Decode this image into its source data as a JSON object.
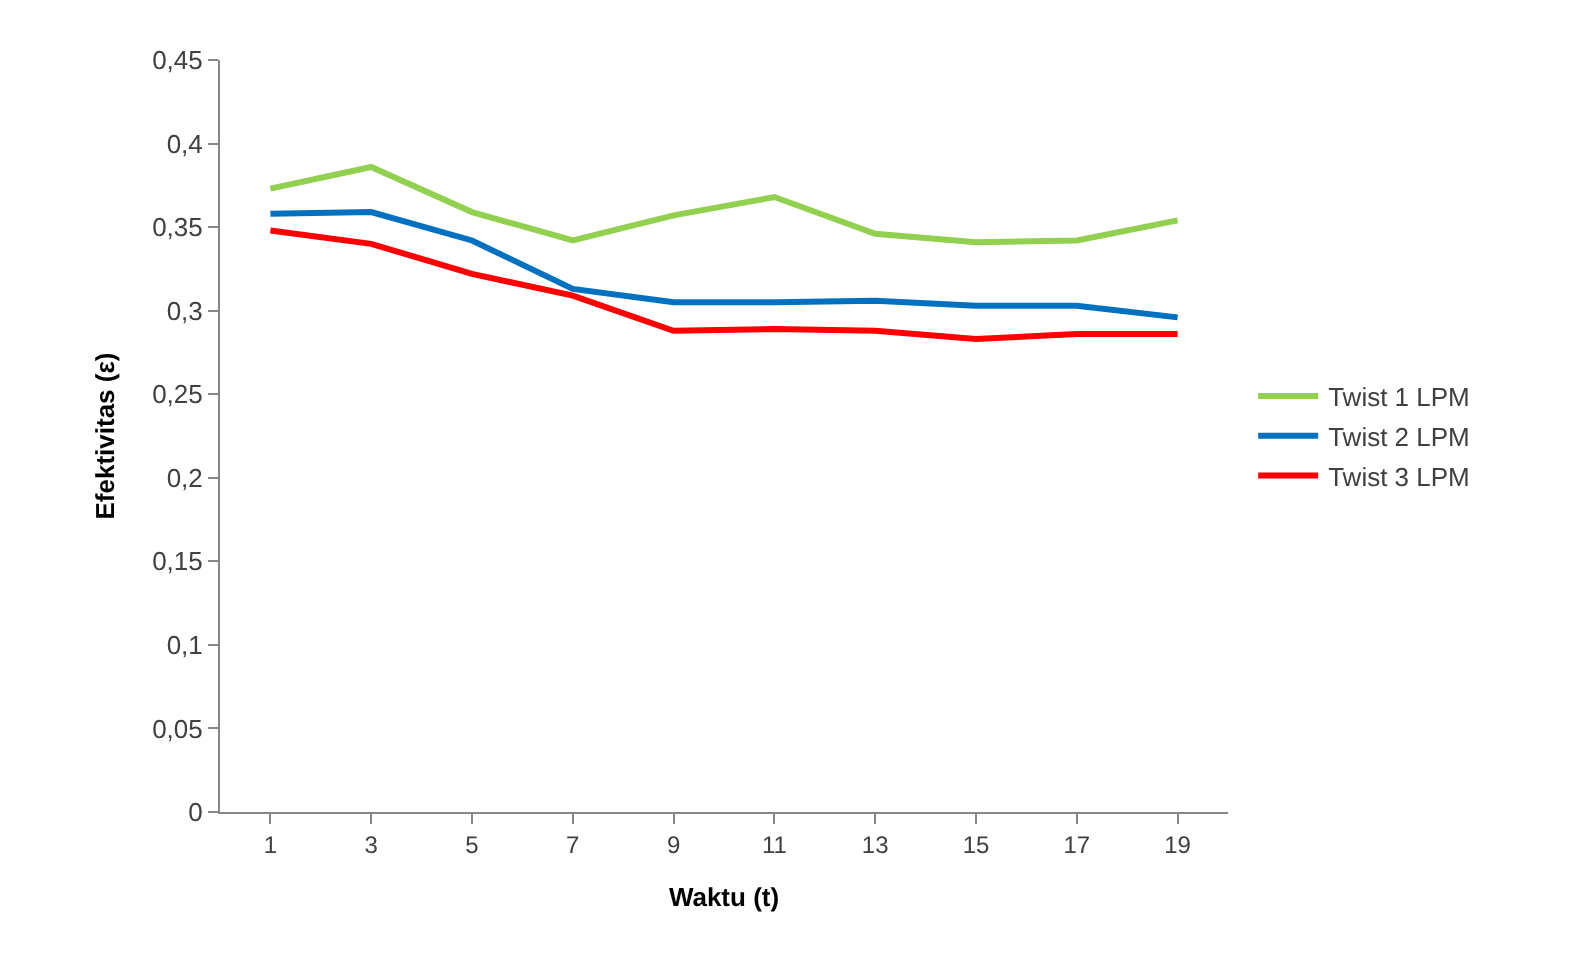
{
  "chart_data": {
    "type": "line",
    "xlabel": "Waktu (t)",
    "ylabel": "Efektivitas (ε)",
    "x": [
      1,
      3,
      5,
      7,
      9,
      11,
      13,
      15,
      17,
      19
    ],
    "xlim": [
      0,
      20
    ],
    "xticks": [
      1,
      3,
      5,
      7,
      9,
      11,
      13,
      15,
      17,
      19
    ],
    "series": [
      {
        "name": "Twist 1 LPM",
        "color": "#92d050",
        "values": [
          0.373,
          0.386,
          0.359,
          0.342,
          0.357,
          0.368,
          0.346,
          0.341,
          0.342,
          0.354
        ]
      },
      {
        "name": "Twist 2 LPM",
        "color": "#0070c0",
        "values": [
          0.358,
          0.359,
          0.342,
          0.313,
          0.305,
          0.305,
          0.306,
          0.303,
          0.303,
          0.296
        ]
      },
      {
        "name": "Twist 3 LPM",
        "color": "#ff0000",
        "values": [
          0.348,
          0.34,
          0.322,
          0.309,
          0.288,
          0.289,
          0.288,
          0.283,
          0.286,
          0.286
        ]
      }
    ],
    "ylim": [
      0,
      0.45
    ],
    "yticks": [
      {
        "value": 0,
        "label": "0"
      },
      {
        "value": 0.05,
        "label": "0,05"
      },
      {
        "value": 0.1,
        "label": "0,1"
      },
      {
        "value": 0.15,
        "label": "0,15"
      },
      {
        "value": 0.2,
        "label": "0,2"
      },
      {
        "value": 0.25,
        "label": "0,25"
      },
      {
        "value": 0.3,
        "label": "0,3"
      },
      {
        "value": 0.35,
        "label": "0,35"
      },
      {
        "value": 0.4,
        "label": "0,4"
      },
      {
        "value": 0.45,
        "label": "0,45"
      }
    ],
    "grid": false,
    "legend": "right",
    "marker": "none",
    "line_style": "solid"
  }
}
